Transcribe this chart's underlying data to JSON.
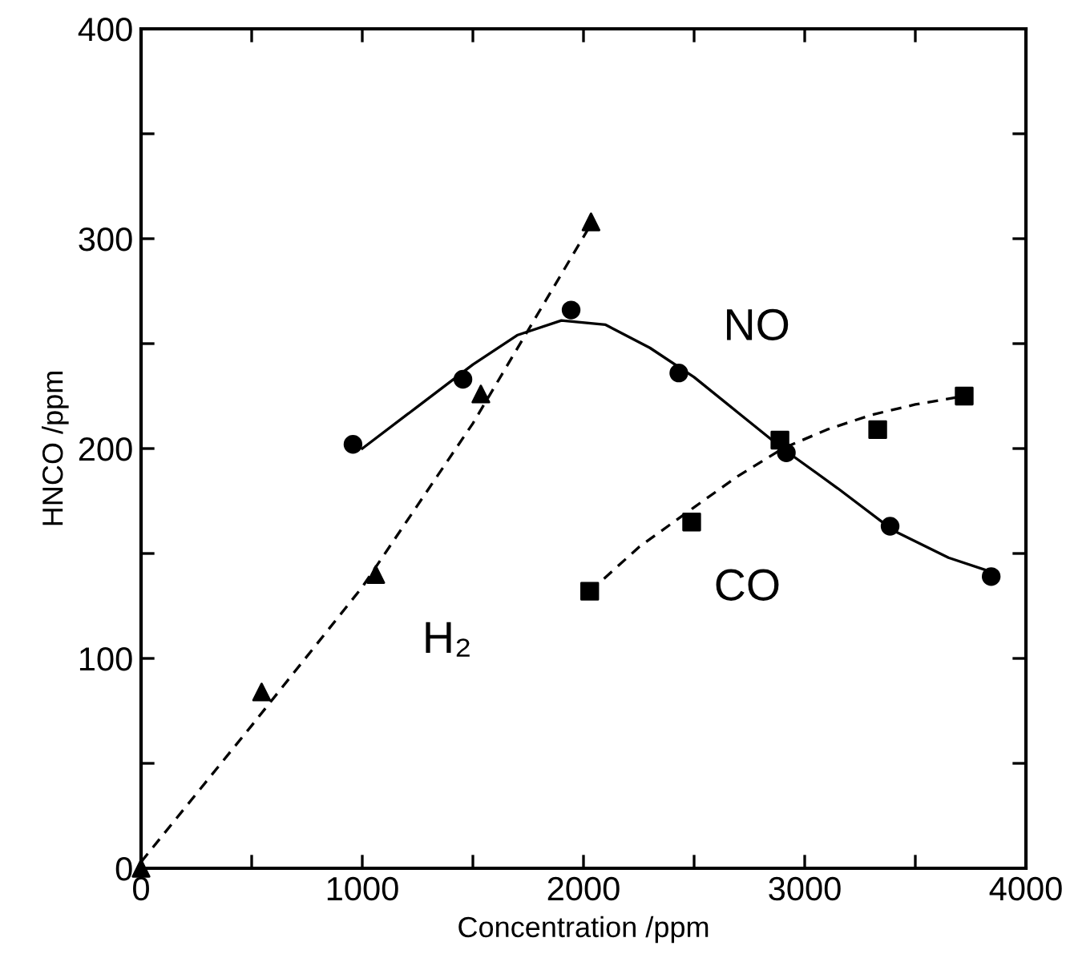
{
  "chart_data": {
    "type": "scatter",
    "xlabel": "Concentration /ppm",
    "ylabel": "HNCO /ppm",
    "xlim": [
      0,
      4000
    ],
    "ylim": [
      0,
      400
    ],
    "xticks": [
      0,
      {
        "value": 500,
        "label": null
      },
      1000,
      {
        "value": 1500,
        "label": null
      },
      2000,
      {
        "value": 2500,
        "label": null
      },
      3000,
      {
        "value": 3500,
        "label": null
      },
      4000
    ],
    "yticks": [
      0,
      {
        "value": 50,
        "label": null
      },
      100,
      {
        "value": 150,
        "label": null
      },
      200,
      {
        "value": 250,
        "label": null
      },
      300,
      {
        "value": 350,
        "label": null
      },
      400
    ],
    "grid": false,
    "legend": false,
    "series": [
      {
        "name": "H₂",
        "marker": "triangle",
        "color": "#000000",
        "x": [
          0,
          545,
          1061,
          1536,
          2034
        ],
        "values": [
          0,
          84,
          140,
          226,
          308
        ]
      },
      {
        "name": "NO",
        "marker": "circle",
        "color": "#000000",
        "x": [
          958,
          1455,
          1944,
          2431,
          2917,
          3386,
          3843
        ],
        "values": [
          202,
          233,
          266,
          236,
          198,
          163,
          139
        ]
      },
      {
        "name": "CO",
        "marker": "square",
        "color": "#000000",
        "x": [
          2028,
          2489,
          2888,
          3330,
          3721
        ],
        "values": [
          132,
          165,
          204,
          209,
          225
        ]
      },
      {
        "type": "line",
        "line_style": "dashed",
        "marker": "none",
        "color": "#000000",
        "x": [
          0,
          500,
          1000,
          1500,
          2040
        ],
        "values": [
          3,
          68,
          134,
          212,
          308
        ]
      },
      {
        "type": "line",
        "line_style": "solid",
        "marker": "none",
        "color": "#000000",
        "x": [
          1000,
          1250,
          1500,
          1700,
          1900,
          2100,
          2300,
          2500,
          2700,
          2900,
          3150,
          3400,
          3650,
          3850
        ],
        "values": [
          200,
          220,
          240,
          254,
          261,
          259,
          248,
          234,
          217,
          200,
          181,
          161,
          148,
          141
        ]
      },
      {
        "type": "line",
        "line_style": "dashed",
        "marker": "none",
        "color": "#000000",
        "x": [
          2030,
          2250,
          2500,
          2700,
          2900,
          3100,
          3300,
          3500,
          3720
        ],
        "values": [
          132,
          153,
          172,
          187,
          200,
          209,
          216,
          221,
          225
        ]
      }
    ]
  }
}
